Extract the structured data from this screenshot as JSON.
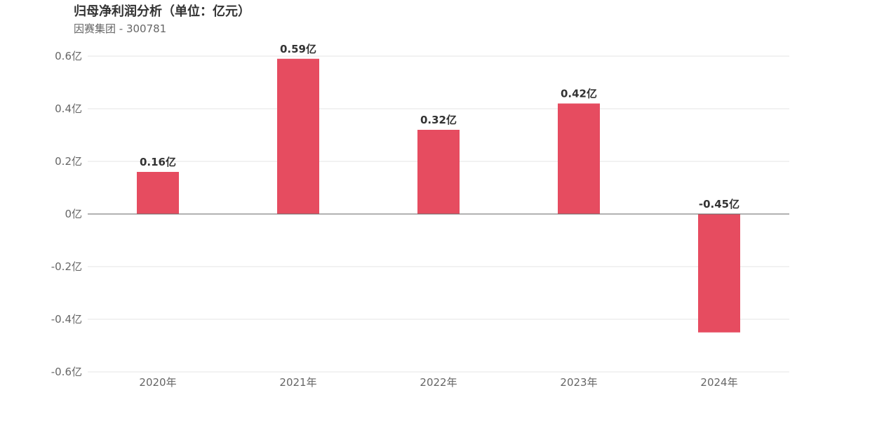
{
  "chart_title": "归母净利润分析（单位：亿元）",
  "chart_subtitle": "因赛集团 - 300781",
  "colors": {
    "bar": "#e64c60",
    "grid": "#e6e6e6",
    "zero_line": "#666666"
  },
  "chart_data": {
    "type": "bar",
    "title": "归母净利润分析（单位：亿元）",
    "subtitle": "因赛集团 - 300781",
    "categories": [
      "2020年",
      "2021年",
      "2022年",
      "2023年",
      "2024年"
    ],
    "values": [
      0.16,
      0.59,
      0.32,
      0.42,
      -0.45
    ],
    "data_labels": [
      "0.16亿",
      "0.59亿",
      "0.32亿",
      "0.42亿",
      "-0.45亿"
    ],
    "y_ticks": [
      0.6,
      0.4,
      0.2,
      0,
      -0.2,
      -0.4,
      -0.6
    ],
    "y_tick_labels": [
      "0.6亿",
      "0.4亿",
      "0.2亿",
      "0亿",
      "-0.2亿",
      "-0.4亿",
      "-0.6亿"
    ],
    "ylim": [
      -0.6,
      0.6
    ],
    "grid": true,
    "legend": "none"
  }
}
